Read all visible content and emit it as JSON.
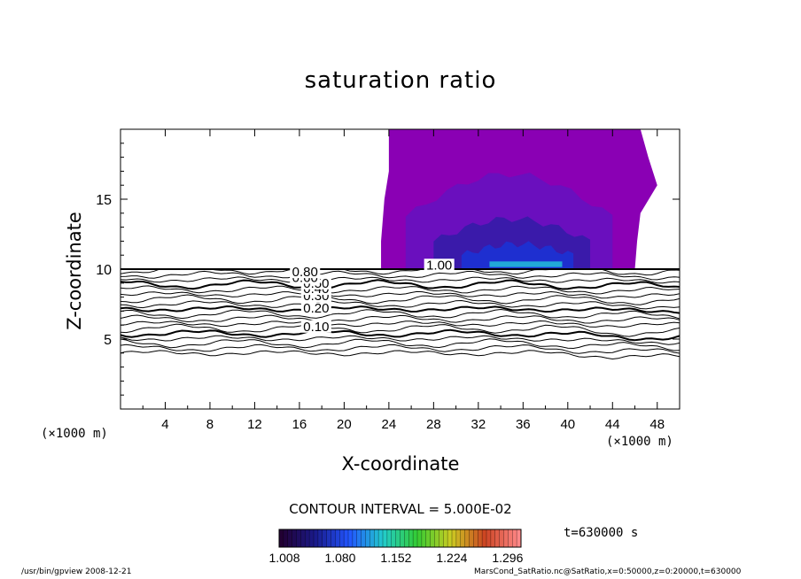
{
  "chart_data": {
    "type": "contour",
    "title": "saturation ratio",
    "xlabel": "X-coordinate",
    "ylabel": "Z-coordinate",
    "x_unit_label": "(×1000 m)",
    "xlim": [
      0,
      50
    ],
    "ylim": [
      0,
      20
    ],
    "x_ticks": [
      4,
      8,
      12,
      16,
      20,
      24,
      28,
      32,
      36,
      40,
      44,
      48
    ],
    "y_ticks": [
      5,
      10,
      15
    ],
    "contour_interval_label": "CONTOUR INTERVAL = 5.000E-02",
    "contour_labels": [
      {
        "text": "0.10",
        "x": 17.5,
        "z": 5.9
      },
      {
        "text": "0.20",
        "x": 17.5,
        "z": 7.2
      },
      {
        "text": "0.30",
        "x": 17.5,
        "z": 8.1
      },
      {
        "text": "0.40",
        "x": 17.5,
        "z": 8.6
      },
      {
        "text": "0.50",
        "x": 17.5,
        "z": 9.0
      },
      {
        "text": "0.60",
        "x": 16.5,
        "z": 9.4
      },
      {
        "text": "0.80",
        "x": 16.5,
        "z": 9.8
      },
      {
        "text": "1.00",
        "x": 28.5,
        "z": 10.3
      }
    ],
    "supersaturated_region": {
      "x_range": [
        23.3,
        46.0
      ],
      "z_range": [
        10.0,
        20.0
      ],
      "max_value_near": {
        "x": 36,
        "z": 10.3
      }
    },
    "colorbar": {
      "ticks": [
        "1.008",
        "1.080",
        "1.152",
        "1.224",
        "1.296"
      ],
      "colors": [
        "#220033",
        "#1a1a8a",
        "#2255ff",
        "#22cccc",
        "#33cc33",
        "#cccc22",
        "#cc4422",
        "#ff8888"
      ]
    },
    "time_label": "t=630000 s"
  },
  "footer": {
    "left": "/usr/bin/gpview   2008-12-21",
    "right": "MarsCond_SatRatio.nc@SatRatio,x=0:50000,z=0:20000,t=630000"
  },
  "colors": {
    "region_outer": "#8a00b4",
    "region_mid": "#6a0fbe",
    "region_inner": "#3a1aaa",
    "region_core": "#1e2fd0",
    "region_peak": "#22c8d8",
    "frame": "#000000"
  }
}
